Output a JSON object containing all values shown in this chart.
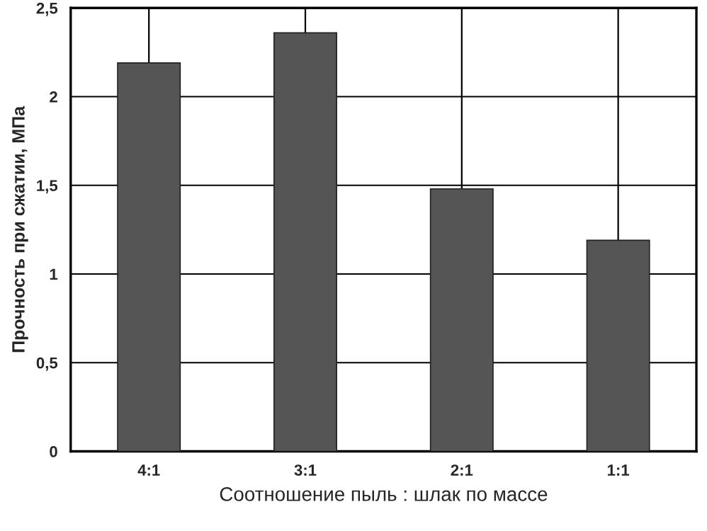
{
  "chart_data": {
    "type": "bar",
    "xlabel": "Соотношение пыль : шлак по массе",
    "ylabel": "Прочность при сжатии, МПа",
    "categories": [
      "4:1",
      "3:1",
      "2:1",
      "1:1"
    ],
    "values": [
      2.19,
      2.36,
      1.48,
      1.19
    ],
    "color": "#555555",
    "ylim": [
      0,
      2.5
    ],
    "yticks": [
      0,
      {
        "value": 0.5,
        "label": "0,5"
      },
      1,
      {
        "value": 1.5,
        "label": "1,5"
      },
      2,
      {
        "value": 2.5,
        "label": "2,5"
      }
    ],
    "grid": true
  }
}
